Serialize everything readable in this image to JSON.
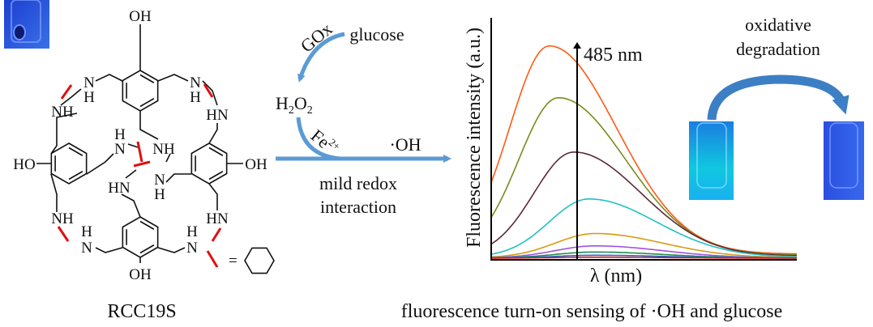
{
  "molecule": {
    "name": "RCC19S",
    "atoms": {
      "oh": "OH",
      "ho": "HO",
      "nh": "NH",
      "hn": "HN",
      "n": "N",
      "h": "H"
    },
    "legend_equals": "=",
    "linker_color": "#e01010"
  },
  "reaction": {
    "enzyme": "GOx",
    "substrate": "glucose",
    "intermediate_main": "H",
    "intermediate_sub1": "2",
    "intermediate_o": "O",
    "intermediate_sub2": "2",
    "catalyst_main": "Fe",
    "catalyst_sup": "2+",
    "product": "·OH",
    "process_line1": "mild redox",
    "process_line2": "interaction",
    "arrow_color": "#5b9bd5"
  },
  "spectrum": {
    "ylabel": "Fluorescence intensity (a.u.)",
    "xlabel": "λ (nm)",
    "peak_label": "485 nm",
    "series": [
      {
        "color": "#ff5a14",
        "peak": 0.86,
        "shift": -0.08
      },
      {
        "color": "#7a8a1e",
        "peak": 0.65,
        "shift": -0.05
      },
      {
        "color": "#5a2a3a",
        "peak": 0.43,
        "shift": 0.0
      },
      {
        "color": "#22c0c0",
        "peak": 0.24,
        "shift": 0.05
      },
      {
        "color": "#d89a10",
        "peak": 0.1,
        "shift": 0.07
      },
      {
        "color": "#a050e0",
        "peak": 0.05,
        "shift": 0.07
      },
      {
        "color": "#208a50",
        "peak": 0.025,
        "shift": 0.07
      },
      {
        "color": "#2060d0",
        "peak": 0.012,
        "shift": 0.07
      },
      {
        "color": "#d02020",
        "peak": 0.004,
        "shift": 0.07
      }
    ]
  },
  "degradation": {
    "line1": "oxidative",
    "line2": "degradation"
  },
  "caption": "fluorescence turn-on sensing of ·OH and glucose"
}
